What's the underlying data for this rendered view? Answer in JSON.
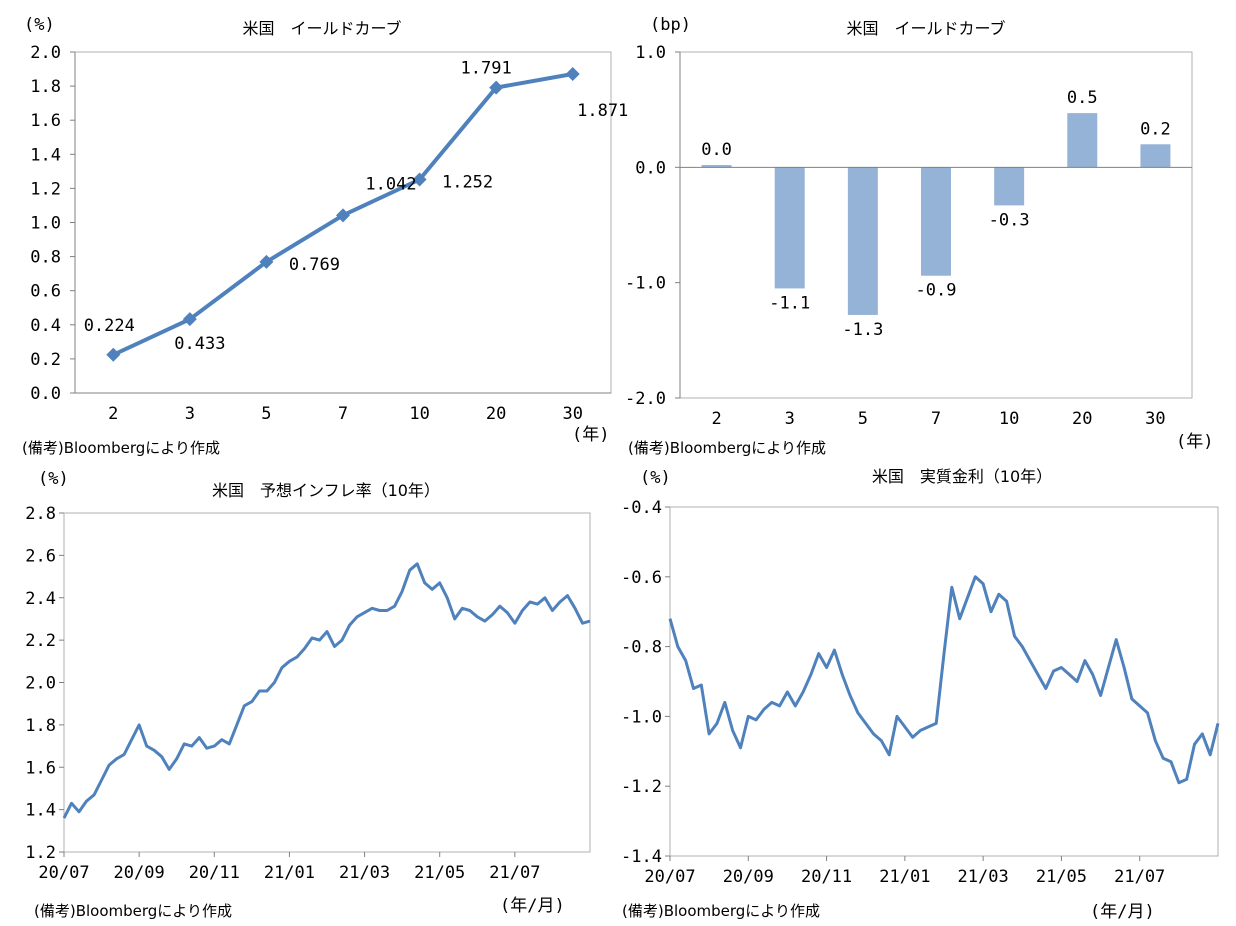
{
  "chart_data": [
    {
      "id": "c1",
      "type": "line",
      "title": "米国　イールドカーブ",
      "ylabel": "(%)",
      "xunit": "(年)",
      "note": "(備考)Bloombergにより作成",
      "categories": [
        "2",
        "3",
        "5",
        "7",
        "10",
        "20",
        "30"
      ],
      "values": [
        0.224,
        0.433,
        0.769,
        1.042,
        1.252,
        1.791,
        1.871
      ],
      "data_labels": [
        "0.224",
        "0.433",
        "0.769",
        "1.042",
        "1.252",
        "1.791",
        "1.871"
      ],
      "ylim": [
        0,
        2.0
      ],
      "yticks": [
        "0.0",
        "0.2",
        "0.4",
        "0.6",
        "0.8",
        "1.0",
        "1.2",
        "1.4",
        "1.6",
        "1.8",
        "2.0"
      ],
      "color": "#4F81BD"
    },
    {
      "id": "c2",
      "type": "bar",
      "title": "米国　イールドカーブ",
      "ylabel": "(bp)",
      "xunit": "(年)",
      "note": "(備考)Bloombergにより作成",
      "categories": [
        "2",
        "3",
        "5",
        "7",
        "10",
        "20",
        "30"
      ],
      "values": [
        0.02,
        -1.05,
        -1.28,
        -0.94,
        -0.33,
        0.47,
        0.2
      ],
      "data_labels": [
        "0.0",
        "-1.1",
        "-1.3",
        "-0.9",
        "-0.3",
        "0.5",
        "0.2"
      ],
      "ylim": [
        -2.0,
        1.0
      ],
      "yticks": [
        "-2.0",
        "-1.0",
        "0.0",
        "1.0"
      ],
      "color": "#95B3D7"
    },
    {
      "id": "c3",
      "type": "line",
      "title": "米国　予想インフレ率（10年）",
      "ylabel": "(%)",
      "xunit": "(年/月)",
      "note": "(備考)Bloombergにより作成",
      "x_ticks": [
        "20/07",
        "20/09",
        "20/11",
        "21/01",
        "21/03",
        "21/05",
        "21/07"
      ],
      "ylim": [
        1.2,
        2.8
      ],
      "yticks": [
        "1.2",
        "1.4",
        "1.6",
        "1.8",
        "2.0",
        "2.2",
        "2.4",
        "2.6",
        "2.8"
      ],
      "x_range": [
        0,
        14.0
      ],
      "x": [
        0,
        0.2,
        0.4,
        0.6,
        0.8,
        1.0,
        1.2,
        1.4,
        1.6,
        1.8,
        2.0,
        2.2,
        2.4,
        2.6,
        2.8,
        3.0,
        3.2,
        3.4,
        3.6,
        3.8,
        4.0,
        4.2,
        4.4,
        4.6,
        4.8,
        5.0,
        5.2,
        5.4,
        5.6,
        5.8,
        6.0,
        6.2,
        6.4,
        6.6,
        6.8,
        7.0,
        7.2,
        7.4,
        7.6,
        7.8,
        8.0,
        8.2,
        8.4,
        8.6,
        8.8,
        9.0,
        9.2,
        9.4,
        9.6,
        9.8,
        10.0,
        10.2,
        10.4,
        10.6,
        10.8,
        11.0,
        11.2,
        11.4,
        11.6,
        11.8,
        12.0,
        12.2,
        12.4,
        12.6,
        12.8,
        13.0,
        13.2,
        13.4,
        13.6,
        13.8,
        14.0
      ],
      "values": [
        1.36,
        1.43,
        1.39,
        1.44,
        1.47,
        1.54,
        1.61,
        1.64,
        1.66,
        1.73,
        1.8,
        1.7,
        1.68,
        1.65,
        1.59,
        1.64,
        1.71,
        1.7,
        1.74,
        1.69,
        1.7,
        1.73,
        1.71,
        1.8,
        1.89,
        1.91,
        1.96,
        1.96,
        2.0,
        2.07,
        2.1,
        2.12,
        2.16,
        2.21,
        2.2,
        2.24,
        2.17,
        2.2,
        2.27,
        2.31,
        2.33,
        2.35,
        2.34,
        2.34,
        2.36,
        2.43,
        2.53,
        2.56,
        2.47,
        2.44,
        2.47,
        2.4,
        2.3,
        2.35,
        2.34,
        2.31,
        2.29,
        2.32,
        2.36,
        2.33,
        2.28,
        2.34,
        2.38,
        2.37,
        2.4,
        2.34,
        2.38,
        2.41,
        2.35,
        2.28,
        2.29
      ],
      "color": "#4F81BD"
    },
    {
      "id": "c4",
      "type": "line",
      "title": "米国　実質金利（10年）",
      "ylabel": "(%)",
      "xunit": "(年/月)",
      "note": "(備考)Bloombergにより作成",
      "x_ticks": [
        "20/07",
        "20/09",
        "20/11",
        "21/01",
        "21/03",
        "21/05",
        "21/07"
      ],
      "ylim": [
        -1.4,
        -0.4
      ],
      "yticks": [
        "-1.4",
        "-1.2",
        "-1.0",
        "-0.8",
        "-0.6",
        "-0.4"
      ],
      "x_range": [
        0,
        14.0
      ],
      "x": [
        0,
        0.2,
        0.4,
        0.6,
        0.8,
        1.0,
        1.2,
        1.4,
        1.6,
        1.8,
        2.0,
        2.2,
        2.4,
        2.6,
        2.8,
        3.0,
        3.2,
        3.4,
        3.6,
        3.8,
        4.0,
        4.2,
        4.4,
        4.6,
        4.8,
        5.0,
        5.2,
        5.4,
        5.6,
        5.8,
        6.0,
        6.2,
        6.4,
        6.6,
        6.8,
        7.0,
        7.2,
        7.4,
        7.6,
        7.8,
        8.0,
        8.2,
        8.4,
        8.6,
        8.8,
        9.0,
        9.2,
        9.4,
        9.6,
        9.8,
        10.0,
        10.2,
        10.4,
        10.6,
        10.8,
        11.0,
        11.2,
        11.4,
        11.6,
        11.8,
        12.0,
        12.2,
        12.4,
        12.6,
        12.8,
        13.0,
        13.2,
        13.4,
        13.6,
        13.8,
        14.0
      ],
      "values": [
        -0.72,
        -0.8,
        -0.84,
        -0.92,
        -0.91,
        -1.05,
        -1.02,
        -0.96,
        -1.04,
        -1.09,
        -1.0,
        -1.01,
        -0.98,
        -0.96,
        -0.97,
        -0.93,
        -0.97,
        -0.93,
        -0.88,
        -0.82,
        -0.86,
        -0.81,
        -0.88,
        -0.94,
        -0.99,
        -1.02,
        -1.05,
        -1.07,
        -1.11,
        -1.0,
        -1.03,
        -1.06,
        -1.04,
        -1.03,
        -1.02,
        -0.82,
        -0.63,
        -0.72,
        -0.66,
        -0.6,
        -0.62,
        -0.7,
        -0.65,
        -0.67,
        -0.77,
        -0.8,
        -0.84,
        -0.88,
        -0.92,
        -0.87,
        -0.86,
        -0.88,
        -0.9,
        -0.84,
        -0.88,
        -0.94,
        -0.86,
        -0.78,
        -0.86,
        -0.95,
        -0.97,
        -0.99,
        -1.07,
        -1.12,
        -1.13,
        -1.19,
        -1.18,
        -1.08,
        -1.05,
        -1.11,
        -1.02
      ],
      "color": "#4F81BD"
    }
  ]
}
